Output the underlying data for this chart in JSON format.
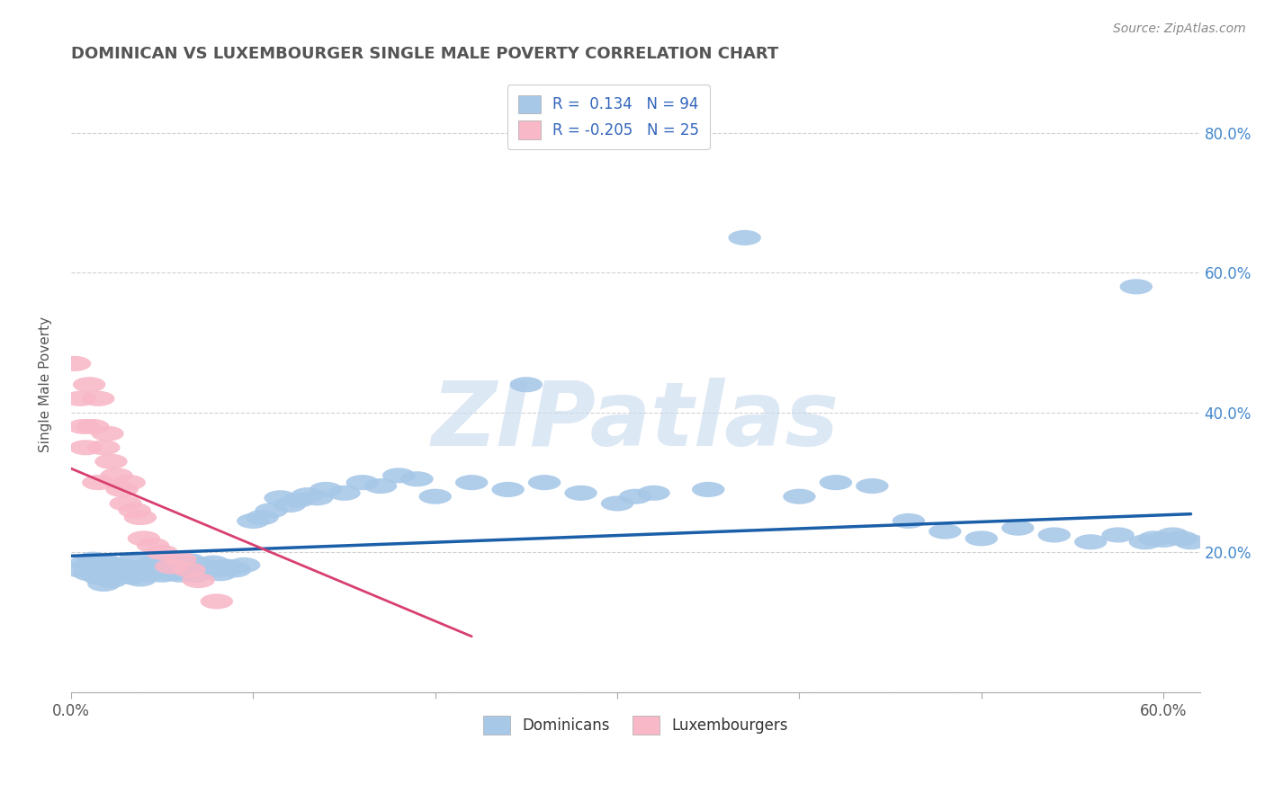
{
  "title": "DOMINICAN VS LUXEMBOURGER SINGLE MALE POVERTY CORRELATION CHART",
  "source_text": "Source: ZipAtlas.com",
  "ylabel": "Single Male Poverty",
  "xlim": [
    0.0,
    0.62
  ],
  "ylim": [
    0.0,
    0.88
  ],
  "r_dominican": 0.134,
  "n_dominican": 94,
  "r_luxembourger": -0.205,
  "n_luxembourger": 25,
  "color_dominican": "#a8c8e8",
  "color_luxembourger": "#f8b8c8",
  "line_color_dominican": "#1a5fa8",
  "line_color_luxembourger": "#d84070",
  "legend_label_dominican": "Dominicans",
  "legend_label_luxembourger": "Luxembourgers",
  "watermark": "ZIPatlas",
  "background_color": "#ffffff",
  "grid_color": "#cccccc",
  "dominican_x": [
    0.005,
    0.008,
    0.01,
    0.012,
    0.015,
    0.015,
    0.018,
    0.018,
    0.02,
    0.02,
    0.022,
    0.022,
    0.023,
    0.025,
    0.025,
    0.027,
    0.028,
    0.03,
    0.03,
    0.032,
    0.033,
    0.035,
    0.035,
    0.038,
    0.038,
    0.04,
    0.042,
    0.043,
    0.045,
    0.045,
    0.048,
    0.05,
    0.05,
    0.052,
    0.055,
    0.055,
    0.058,
    0.06,
    0.062,
    0.065,
    0.065,
    0.068,
    0.07,
    0.072,
    0.075,
    0.078,
    0.08,
    0.082,
    0.085,
    0.088,
    0.09,
    0.095,
    0.1,
    0.105,
    0.11,
    0.115,
    0.12,
    0.125,
    0.13,
    0.135,
    0.14,
    0.15,
    0.16,
    0.17,
    0.18,
    0.19,
    0.2,
    0.22,
    0.24,
    0.25,
    0.26,
    0.28,
    0.3,
    0.31,
    0.32,
    0.35,
    0.37,
    0.4,
    0.42,
    0.44,
    0.46,
    0.48,
    0.5,
    0.52,
    0.54,
    0.56,
    0.575,
    0.585,
    0.59,
    0.595,
    0.6,
    0.605,
    0.61,
    0.615
  ],
  "dominican_y": [
    0.175,
    0.185,
    0.17,
    0.19,
    0.165,
    0.18,
    0.175,
    0.155,
    0.168,
    0.185,
    0.172,
    0.16,
    0.178,
    0.165,
    0.182,
    0.17,
    0.175,
    0.168,
    0.18,
    0.172,
    0.165,
    0.175,
    0.19,
    0.178,
    0.162,
    0.172,
    0.18,
    0.168,
    0.175,
    0.185,
    0.178,
    0.172,
    0.168,
    0.182,
    0.17,
    0.185,
    0.175,
    0.168,
    0.178,
    0.172,
    0.188,
    0.168,
    0.175,
    0.182,
    0.178,
    0.185,
    0.175,
    0.17,
    0.18,
    0.178,
    0.175,
    0.182,
    0.245,
    0.25,
    0.26,
    0.278,
    0.268,
    0.275,
    0.282,
    0.278,
    0.29,
    0.285,
    0.3,
    0.295,
    0.31,
    0.305,
    0.28,
    0.3,
    0.29,
    0.44,
    0.3,
    0.285,
    0.27,
    0.28,
    0.285,
    0.29,
    0.65,
    0.28,
    0.3,
    0.295,
    0.245,
    0.23,
    0.22,
    0.235,
    0.225,
    0.215,
    0.225,
    0.58,
    0.215,
    0.22,
    0.218,
    0.225,
    0.22,
    0.215
  ],
  "luxembourger_x": [
    0.002,
    0.005,
    0.007,
    0.008,
    0.01,
    0.012,
    0.015,
    0.015,
    0.018,
    0.02,
    0.022,
    0.025,
    0.028,
    0.03,
    0.032,
    0.035,
    0.038,
    0.04,
    0.045,
    0.05,
    0.055,
    0.06,
    0.065,
    0.07,
    0.08
  ],
  "luxembourger_y": [
    0.47,
    0.42,
    0.38,
    0.35,
    0.44,
    0.38,
    0.3,
    0.42,
    0.35,
    0.37,
    0.33,
    0.31,
    0.29,
    0.27,
    0.3,
    0.26,
    0.25,
    0.22,
    0.21,
    0.2,
    0.18,
    0.19,
    0.175,
    0.16,
    0.13
  ],
  "lux_line_x0": 0.0,
  "lux_line_x1": 0.22,
  "lux_line_y0": 0.32,
  "lux_line_y1": 0.08,
  "dom_line_x0": 0.0,
  "dom_line_x1": 0.615,
  "dom_line_y0": 0.195,
  "dom_line_y1": 0.255
}
